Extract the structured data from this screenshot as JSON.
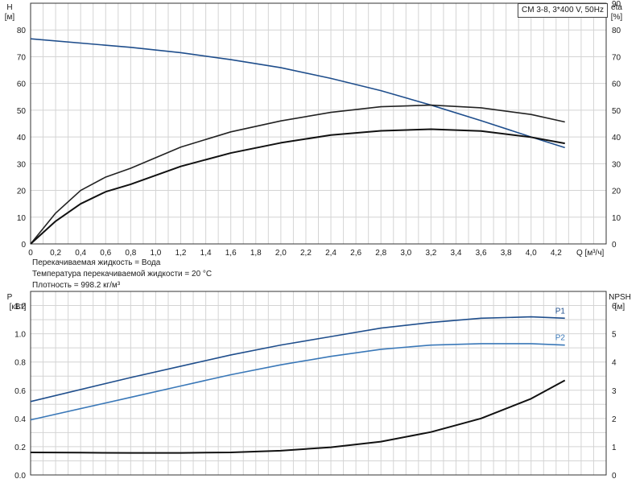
{
  "pump_label": "CM 3-8, 3*400 V, 50Hz",
  "info": {
    "liquid": "Перекачиваемая жидкость = Вода",
    "temperature": "Температура перекачиваемой жидкости = 20 °C",
    "density": "Плотность = 998.2 кг/м³"
  },
  "chart_data": [
    {
      "type": "line",
      "x_label": "Q [м³/ч]",
      "y_label_left": [
        "H",
        "[м]"
      ],
      "y_label_right": [
        "eta",
        "[%]"
      ],
      "xlim": [
        0,
        4.6
      ],
      "ylim_left": [
        0,
        90
      ],
      "ylim_right": [
        0,
        90
      ],
      "x_ticks": [
        "0",
        "0,2",
        "0,4",
        "0,6",
        "0,8",
        "1,0",
        "1,2",
        "1,4",
        "1,6",
        "1,8",
        "2,0",
        "2,2",
        "2,4",
        "2,6",
        "2,8",
        "3,0",
        "3,2",
        "3,4",
        "3,6",
        "3,8",
        "4,0",
        "4,2"
      ],
      "y_ticks_left": [
        "0",
        "10",
        "20",
        "30",
        "40",
        "50",
        "60",
        "70",
        "80"
      ],
      "y_ticks_right": [
        "0",
        "10",
        "20",
        "30",
        "40",
        "50",
        "60",
        "70",
        "80",
        "90"
      ],
      "grid": true,
      "series": [
        {
          "color": "#1f4e8c",
          "axis": "left",
          "x": [
            0,
            0.8,
            1.2,
            1.6,
            2.0,
            2.4,
            2.8,
            3.2,
            3.6,
            4.0,
            4.27
          ],
          "y": [
            76.7,
            73.5,
            71.5,
            68.9,
            65.9,
            61.9,
            57.3,
            51.9,
            46.1,
            40.0,
            36.0
          ]
        },
        {
          "color": "#222222",
          "axis": "right",
          "x": [
            0,
            0.2,
            0.4,
            0.6,
            0.8,
            1.2,
            1.6,
            2.0,
            2.4,
            2.8,
            3.2,
            3.6,
            4.0,
            4.27
          ],
          "y": [
            0,
            11.5,
            20.0,
            25.0,
            28.3,
            36.2,
            41.9,
            46.0,
            49.2,
            51.3,
            51.9,
            50.9,
            48.4,
            45.6
          ]
        },
        {
          "color": "#111111",
          "axis": "right",
          "x": [
            0,
            0.2,
            0.4,
            0.6,
            0.8,
            1.2,
            1.6,
            2.0,
            2.4,
            2.8,
            3.2,
            3.6,
            4.0,
            4.27
          ],
          "y": [
            0,
            8.5,
            15.0,
            19.5,
            22.3,
            29.0,
            34.0,
            37.8,
            40.7,
            42.3,
            42.9,
            42.2,
            39.9,
            37.6
          ]
        }
      ]
    },
    {
      "type": "line",
      "y_label_left": [
        "P",
        "[кВт]"
      ],
      "y_label_right": [
        "NPSH",
        "[м]"
      ],
      "xlim": [
        0,
        4.6
      ],
      "ylim_left": [
        0,
        1.3
      ],
      "ylim_right": [
        0,
        6.5
      ],
      "y_ticks_left": [
        "0.0",
        "0.2",
        "0.4",
        "0.6",
        "0.8",
        "1.0",
        "1.2"
      ],
      "y_ticks_right": [
        "0",
        "1",
        "2",
        "3",
        "4",
        "5",
        "6"
      ],
      "grid": true,
      "series": [
        {
          "name": "P1",
          "color": "#1f4e8c",
          "axis": "left",
          "x": [
            0,
            0.8,
            1.2,
            1.6,
            2.0,
            2.4,
            2.8,
            3.2,
            3.6,
            4.0,
            4.27
          ],
          "y": [
            0.52,
            0.69,
            0.77,
            0.85,
            0.92,
            0.98,
            1.04,
            1.08,
            1.11,
            1.12,
            1.11
          ]
        },
        {
          "name": "P2",
          "color": "#3a78b8",
          "axis": "left",
          "x": [
            0,
            0.8,
            1.2,
            1.6,
            2.0,
            2.4,
            2.8,
            3.2,
            3.6,
            4.0,
            4.27
          ],
          "y": [
            0.39,
            0.55,
            0.63,
            0.71,
            0.78,
            0.84,
            0.89,
            0.92,
            0.93,
            0.93,
            0.92
          ]
        },
        {
          "color": "#111111",
          "axis": "right",
          "x": [
            0,
            0.4,
            0.8,
            1.2,
            1.6,
            2.0,
            2.4,
            2.8,
            3.2,
            3.6,
            4.0,
            4.27
          ],
          "y": [
            0.8,
            0.79,
            0.78,
            0.78,
            0.8,
            0.86,
            0.98,
            1.18,
            1.52,
            2.0,
            2.7,
            3.35
          ]
        }
      ]
    }
  ]
}
